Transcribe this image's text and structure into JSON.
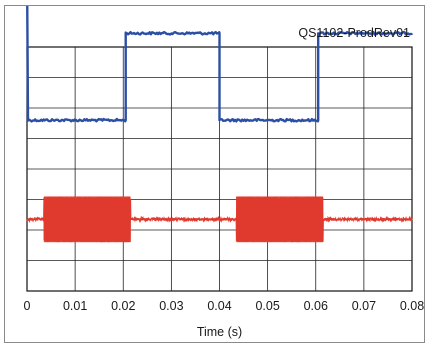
{
  "chart_data": {
    "type": "line",
    "title": "QS1102-ProdRev01",
    "xlabel": "Time (s)",
    "ylabel": "",
    "xlim": [
      0,
      0.08
    ],
    "x_ticks": [
      "0",
      "0.01",
      "0.02",
      "0.03",
      "0.04",
      "0.05",
      "0.06",
      "0.07",
      "0.08"
    ],
    "grid": true,
    "y_divisions": 8,
    "series": [
      {
        "color": "#2b4fa5",
        "kind": "square-wave",
        "levels": [
          4.45,
          1.6
        ],
        "points": [
          [
            0,
            6.6
          ],
          [
            0.0002,
            1.6
          ],
          [
            0.0205,
            1.6
          ],
          [
            0.0205,
            4.45
          ],
          [
            0.04,
            4.45
          ],
          [
            0.04,
            1.6
          ],
          [
            0.0605,
            1.6
          ],
          [
            0.0605,
            4.45
          ],
          [
            0.08,
            4.45
          ]
        ]
      },
      {
        "color": "#e03a2f",
        "kind": "burst",
        "baseline": -1.65,
        "amplitude": 0.75,
        "bursts": [
          [
            0.0035,
            0.0215
          ],
          [
            0.0435,
            0.0615
          ]
        ]
      }
    ]
  }
}
